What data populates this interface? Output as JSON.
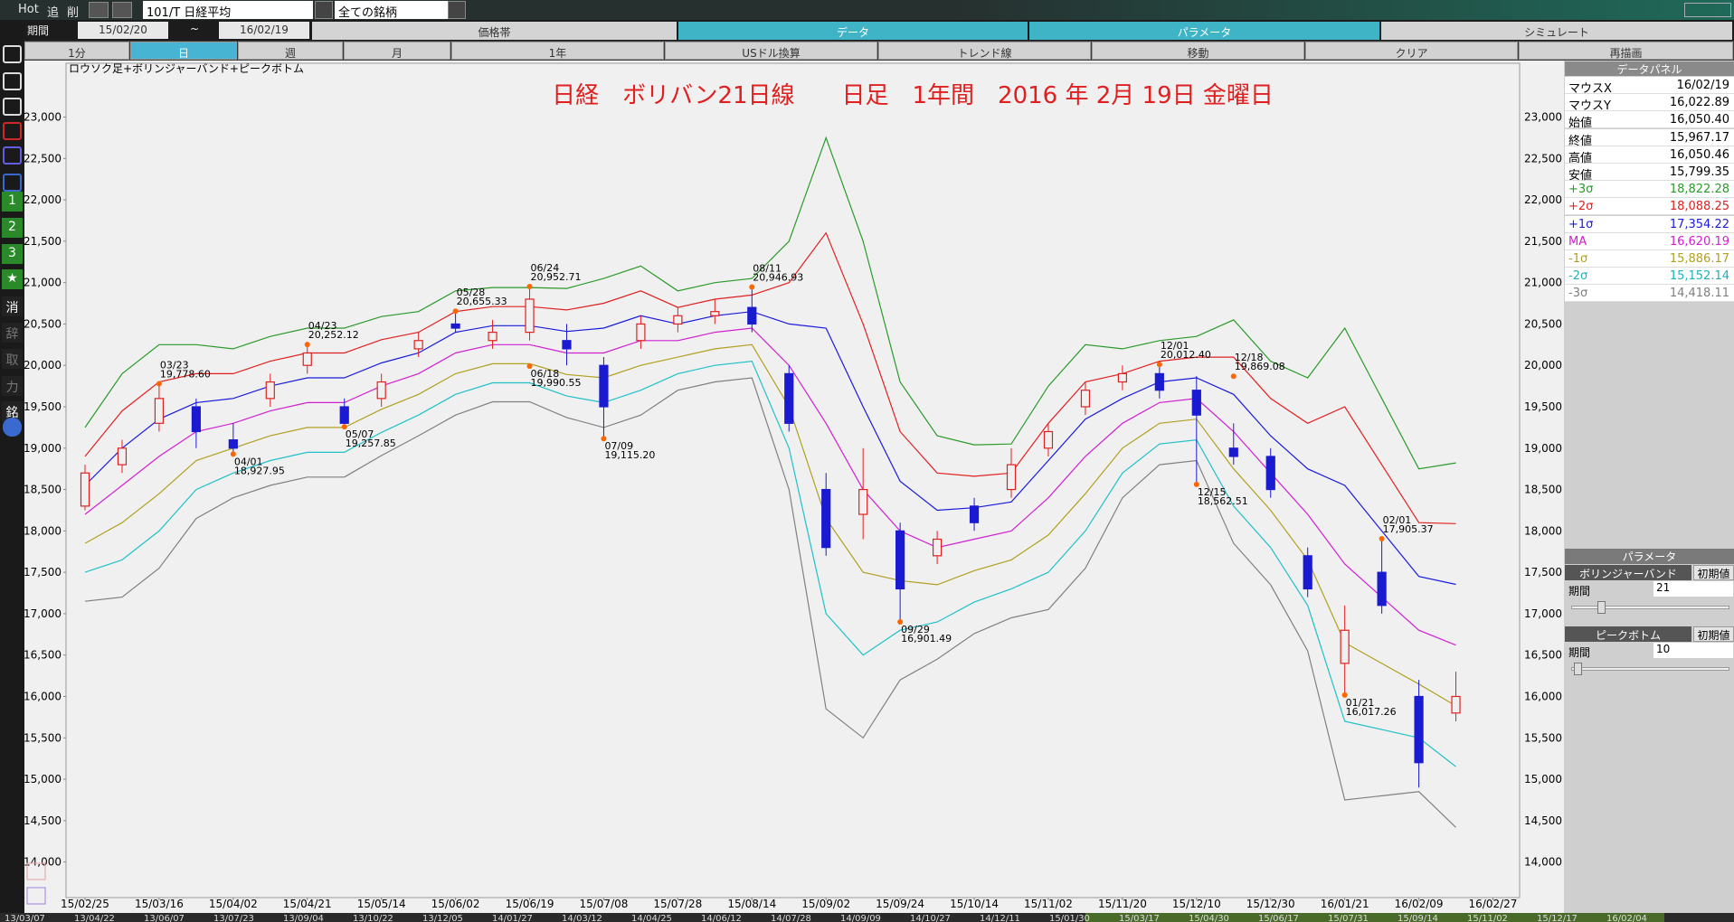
{
  "toolbar": {
    "buttons": [
      "Hot",
      "追",
      "削"
    ],
    "code": "101/T 日経平均",
    "universe": "全ての銘柄",
    "period_label": "期間",
    "start": "15/02/20",
    "sep": "~",
    "end": "16/02/19"
  },
  "tabs": [
    "価格帯",
    "データ",
    "パラメータ",
    "シミュレート"
  ],
  "periods": [
    "1分",
    "日",
    "週",
    "月",
    "1年",
    "USドル換算",
    "トレンド線",
    "移動",
    "クリア",
    "再描画"
  ],
  "sidebar": [
    "1",
    "2",
    "3",
    "★",
    "消",
    "辞",
    "取",
    "力",
    "銘"
  ],
  "chart_data": {
    "type": "candlestick",
    "subtitle": "ロウソク足+ボリンジャーバンド+ピークボトム",
    "title": "日経　ボリバン21日線　　日足　1年間　2016 年 2月 19日 金曜日",
    "categories": [
      "15/02/25",
      null,
      "15/03/16",
      null,
      "15/04/02",
      null,
      "15/04/21",
      null,
      "15/05/14",
      null,
      "15/06/02",
      null,
      "15/06/19",
      null,
      "15/07/08",
      null,
      "15/07/28",
      null,
      "15/08/14",
      null,
      "15/09/02",
      null,
      "15/09/24",
      null,
      "15/10/14",
      null,
      "15/11/02",
      null,
      "15/11/20",
      null,
      "15/12/10",
      null,
      "15/12/30",
      null,
      "16/01/21",
      null,
      "16/02/09",
      null,
      "16/02/27"
    ],
    "open": [
      18300,
      18800,
      19300,
      19500,
      19100,
      19600,
      20000,
      19500,
      19600,
      20200,
      20500,
      20300,
      20400,
      20300,
      20000,
      20300,
      20500,
      20600,
      20700,
      19900,
      18500,
      18200,
      18000,
      17700,
      18300,
      18500,
      19000,
      19500,
      19800,
      19900,
      19700,
      19000,
      18900,
      17700,
      16400,
      17500,
      16000,
      15800,
      null
    ],
    "high": [
      18800,
      19100,
      19780,
      19600,
      19300,
      19900,
      20250,
      19600,
      19900,
      20400,
      20660,
      20550,
      20950,
      20500,
      20100,
      20600,
      20700,
      20800,
      20950,
      20000,
      18700,
      19000,
      18100,
      18000,
      18400,
      19000,
      19300,
      19800,
      20000,
      20010,
      19870,
      19300,
      19000,
      17800,
      17100,
      17900,
      16200,
      16300,
      null
    ],
    "low": [
      18250,
      18700,
      19200,
      19000,
      18930,
      19500,
      19900,
      19260,
      19500,
      20100,
      20400,
      20200,
      20300,
      20000,
      19120,
      20200,
      20400,
      20500,
      20400,
      19200,
      17700,
      17900,
      16900,
      17600,
      18000,
      18400,
      18900,
      19400,
      19700,
      19600,
      18560,
      18800,
      18400,
      17200,
      16020,
      17000,
      14900,
      15700,
      null
    ],
    "close": [
      18700,
      19000,
      19600,
      19200,
      19000,
      19800,
      20150,
      19300,
      19800,
      20300,
      20450,
      20400,
      20800,
      20200,
      19500,
      20500,
      20600,
      20650,
      20500,
      19300,
      17800,
      18500,
      17300,
      17900,
      18100,
      18800,
      19200,
      19700,
      19900,
      19700,
      19400,
      18900,
      18500,
      17300,
      16800,
      17100,
      15200,
      16000,
      null
    ],
    "up_color": "#e02020",
    "down_color": "#1a1ad0",
    "series": [
      {
        "name": "+3σ",
        "color": "#2a9a2a",
        "values": [
          19250,
          19900,
          20250,
          20250,
          20200,
          20350,
          20450,
          20450,
          20590,
          20650,
          20900,
          20940,
          20940,
          20930,
          21050,
          21200,
          20900,
          21000,
          21050,
          21500,
          22750,
          21500,
          19800,
          19150,
          19040,
          19050,
          19750,
          20250,
          20200,
          20300,
          20350,
          20550,
          20050,
          19850,
          20450,
          19600,
          18750,
          18822.28,
          null
        ]
      },
      {
        "name": "+2σ",
        "color": "#e02020",
        "values": [
          18900,
          19450,
          19800,
          19900,
          19900,
          20050,
          20150,
          20150,
          20310,
          20400,
          20650,
          20710,
          20710,
          20670,
          20750,
          20900,
          20700,
          20800,
          20850,
          21000,
          21600,
          20500,
          19200,
          18700,
          18660,
          18700,
          19300,
          19800,
          19900,
          20050,
          20100,
          20100,
          19600,
          19300,
          19500,
          18800,
          18100,
          18088.25,
          null
        ]
      },
      {
        "name": "+1σ",
        "color": "#1a1adc",
        "values": [
          18550,
          19000,
          19350,
          19550,
          19600,
          19750,
          19850,
          19850,
          20030,
          20150,
          20400,
          20480,
          20480,
          20410,
          20450,
          20600,
          20500,
          20600,
          20650,
          20500,
          20450,
          19500,
          18600,
          18250,
          18280,
          18350,
          18850,
          19350,
          19600,
          19800,
          19850,
          19650,
          19150,
          18750,
          18550,
          18000,
          17450,
          17354.22,
          null
        ]
      },
      {
        "name": "MA",
        "color": "#d020d0",
        "values": [
          18200,
          18550,
          18900,
          19200,
          19300,
          19450,
          19550,
          19550,
          19750,
          19900,
          20150,
          20250,
          20250,
          20150,
          20150,
          20300,
          20300,
          20400,
          20450,
          20000,
          19300,
          18500,
          18000,
          17800,
          17900,
          18000,
          18400,
          18900,
          19300,
          19550,
          19600,
          19200,
          18700,
          18200,
          17600,
          17200,
          16800,
          16620.19,
          null
        ]
      },
      {
        "name": "-1σ",
        "color": "#b0a020",
        "values": [
          17850,
          18100,
          18450,
          18850,
          19000,
          19150,
          19250,
          19250,
          19470,
          19650,
          19900,
          20020,
          20020,
          19890,
          19850,
          20000,
          20100,
          20200,
          20250,
          19500,
          18150,
          17500,
          17400,
          17350,
          17520,
          17650,
          17950,
          18450,
          19000,
          19300,
          19350,
          18750,
          18250,
          17650,
          16650,
          16400,
          16150,
          15886.17,
          null
        ]
      },
      {
        "name": "-2σ",
        "color": "#20c0c8",
        "values": [
          17500,
          17650,
          18000,
          18500,
          18700,
          18850,
          18950,
          18950,
          19190,
          19400,
          19650,
          19790,
          19790,
          19630,
          19550,
          19700,
          19900,
          20000,
          20050,
          19000,
          17000,
          16500,
          16800,
          16900,
          17140,
          17300,
          17500,
          18000,
          18700,
          19050,
          19100,
          18300,
          17800,
          17100,
          15700,
          15600,
          15500,
          15152.14,
          null
        ]
      },
      {
        "name": "-3σ",
        "color": "#808080",
        "values": [
          17150,
          17200,
          17550,
          18150,
          18400,
          18550,
          18650,
          18650,
          18910,
          19150,
          19400,
          19560,
          19560,
          19370,
          19250,
          19400,
          19700,
          19800,
          19850,
          18500,
          15850,
          15500,
          16200,
          16450,
          16760,
          16950,
          17050,
          17550,
          18400,
          18800,
          18850,
          17850,
          17350,
          16550,
          14750,
          14800,
          14850,
          14418.11,
          null
        ]
      }
    ],
    "annotations": [
      {
        "date": "03/23",
        "price": 19778.6,
        "label": "19,778.60",
        "at": 2
      },
      {
        "date": "04/01",
        "price": 18927.95,
        "label": "18,927.95",
        "at": 4
      },
      {
        "date": "04/23",
        "price": 20252.12,
        "label": "20,252.12",
        "at": 6
      },
      {
        "date": "05/07",
        "price": 19257.85,
        "label": "19,257.85",
        "at": 7
      },
      {
        "date": "05/28",
        "price": 20655.33,
        "label": "20,655.33",
        "at": 10
      },
      {
        "date": "06/24",
        "price": 20952.71,
        "label": "20,952.71",
        "at": 12
      },
      {
        "date": "06/18",
        "price": 19990.55,
        "label": "19,990.55",
        "at": 12
      },
      {
        "date": "07/09",
        "price": 19115.2,
        "label": "19,115.20",
        "at": 14
      },
      {
        "date": "08/11",
        "price": 20946.93,
        "label": "20,946.93",
        "at": 18
      },
      {
        "date": "09/29",
        "price": 16901.49,
        "label": "16,901.49",
        "at": 22
      },
      {
        "date": "12/01",
        "price": 20012.4,
        "label": "20,012.40",
        "at": 29
      },
      {
        "date": "12/15",
        "price": 18562.51,
        "label": "18,562.51",
        "at": 30
      },
      {
        "date": "12/18",
        "price": 19869.08,
        "label": "19,869.08",
        "at": 31
      },
      {
        "date": "01/21",
        "price": 16017.26,
        "label": "16,017.26",
        "at": 34
      },
      {
        "date": "02/01",
        "price": 17905.37,
        "label": "17,905.37",
        "at": 35
      }
    ],
    "ylim": [
      13570,
      23650
    ],
    "yticks": [
      {
        "value": 14000,
        "label": "14,000"
      },
      {
        "value": 14500,
        "label": "14,500"
      },
      {
        "value": 15000,
        "label": "15,000"
      },
      {
        "value": 15500,
        "label": "15,500"
      },
      {
        "value": 16000,
        "label": "16,000"
      },
      {
        "value": 16500,
        "label": "16,500"
      },
      {
        "value": 17000,
        "label": "17,000"
      },
      {
        "value": 17500,
        "label": "17,500"
      },
      {
        "value": 18000,
        "label": "18,000"
      },
      {
        "value": 18500,
        "label": "18,500"
      },
      {
        "value": 19000,
        "label": "19,000"
      },
      {
        "value": 19500,
        "label": "19,500"
      },
      {
        "value": 20000,
        "label": "20,000"
      },
      {
        "value": 20500,
        "label": "20,500"
      },
      {
        "value": 21000,
        "label": "21,000"
      },
      {
        "value": 21500,
        "label": "21,500"
      },
      {
        "value": 22000,
        "label": "22,000"
      },
      {
        "value": 22500,
        "label": "22,500"
      },
      {
        "value": 23000,
        "label": "23,000"
      }
    ],
    "grid": false
  },
  "overview": [
    "13/03/07",
    "13/04/22",
    "13/06/07",
    "13/07/23",
    "13/09/04",
    "13/10/22",
    "13/12/05",
    "14/01/27",
    "14/03/12",
    "14/04/25",
    "14/06/12",
    "14/07/28",
    "14/09/09",
    "14/10/27",
    "14/12/11",
    "15/01/30",
    "15/03/17",
    "15/04/30",
    "15/06/17",
    "15/07/31",
    "15/09/14",
    "15/11/02",
    "15/12/17",
    "16/02/04"
  ],
  "data_panel": {
    "title": "データパネル",
    "rows": [
      {
        "label": "マウスX",
        "value": "16/02/19",
        "color": "#000000"
      },
      {
        "label": "マウスY",
        "value": "16,022.89",
        "color": "#000000"
      },
      {
        "label": "始値",
        "value": "16,050.40",
        "color": "#000000"
      },
      {
        "label": "終値",
        "value": "15,967.17",
        "color": "#000000"
      },
      {
        "label": "高値",
        "value": "16,050.46",
        "color": "#000000"
      },
      {
        "label": "安値",
        "value": "15,799.35",
        "color": "#000000"
      },
      {
        "label": "+3σ",
        "value": "18,822.28",
        "color": "#2a9a2a"
      },
      {
        "label": "+2σ",
        "value": "18,088.25",
        "color": "#e02020"
      },
      {
        "label": "+1σ",
        "value": "17,354.22",
        "color": "#1a1adc"
      },
      {
        "label": "MA",
        "value": "16,620.19",
        "color": "#d020d0"
      },
      {
        "label": "-1σ",
        "value": "15,886.17",
        "color": "#b0a020"
      },
      {
        "label": "-2σ",
        "value": "15,152.14",
        "color": "#20b0b8"
      },
      {
        "label": "-3σ",
        "value": "14,418.11",
        "color": "#808080"
      }
    ]
  },
  "param_panel": {
    "title": "パラメータ",
    "groups": [
      {
        "name": "ボリンジャーバンド",
        "reset": "初期値",
        "field": "期間",
        "value": "21"
      },
      {
        "name": "ピークボトム",
        "reset": "初期値",
        "field": "期間",
        "value": "10"
      }
    ]
  }
}
